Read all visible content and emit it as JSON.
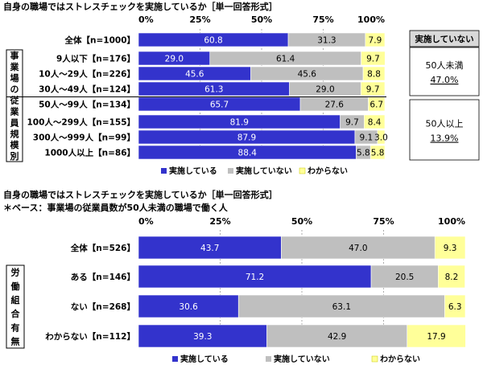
{
  "colors": {
    "yes": "#3333cc",
    "no": "#bfbfbf",
    "unknown": "#ffff99",
    "header_bg": "#d9d9d9"
  },
  "chart_data": [
    {
      "type": "bar",
      "orientation": "horizontal",
      "stacked": true,
      "title": "自身の職場ではストレスチェックを実施しているか［単一回答形式］",
      "subtitle": "",
      "xlim": [
        0,
        100
      ],
      "ticks": [
        "0%",
        "25%",
        "50%",
        "75%",
        "100%"
      ],
      "group_label": "事業場の従業員規模別",
      "categories": [
        "全体【n=1000】",
        "9人以下【n=176】",
        "10人～29人【n=226】",
        "30人～49人【n=124】",
        "50人～99人【n=134】",
        "100人～299人【n=155】",
        "300人～999人【n=99】",
        "1000人以上【n=86】"
      ],
      "series": [
        {
          "name": "実施している",
          "values": [
            60.8,
            29.0,
            45.6,
            61.3,
            65.7,
            81.9,
            87.9,
            88.4
          ]
        },
        {
          "name": "実施していない",
          "values": [
            31.3,
            61.4,
            45.6,
            29.0,
            27.6,
            9.7,
            9.1,
            5.8
          ]
        },
        {
          "name": "わからない",
          "values": [
            7.9,
            9.7,
            8.8,
            9.7,
            6.7,
            8.4,
            3.0,
            5.8
          ]
        }
      ],
      "side_panel": {
        "header": "実施していない",
        "items": [
          {
            "label": "50人未満",
            "value": "47.0%"
          },
          {
            "label": "50人以上",
            "value": "13.9%"
          }
        ]
      }
    },
    {
      "type": "bar",
      "orientation": "horizontal",
      "stacked": true,
      "title": "自身の職場ではストレスチェックを実施しているか［単一回答形式］",
      "subtitle": "＊ベース：事業場の従業員数が50人未満の職場で働く人",
      "xlim": [
        0,
        100
      ],
      "ticks": [
        "0%",
        "25%",
        "50%",
        "75%",
        "100%"
      ],
      "group_label": "労働組合有無",
      "categories": [
        "全体【n=526】",
        "ある【n=146】",
        "ない【n=268】",
        "わからない【n=112】"
      ],
      "series": [
        {
          "name": "実施している",
          "values": [
            43.7,
            71.2,
            30.6,
            39.3
          ]
        },
        {
          "name": "実施していない",
          "values": [
            47.0,
            20.5,
            63.1,
            42.9
          ]
        },
        {
          "name": "わからない",
          "values": [
            9.3,
            8.2,
            6.3,
            17.9
          ]
        }
      ]
    }
  ]
}
